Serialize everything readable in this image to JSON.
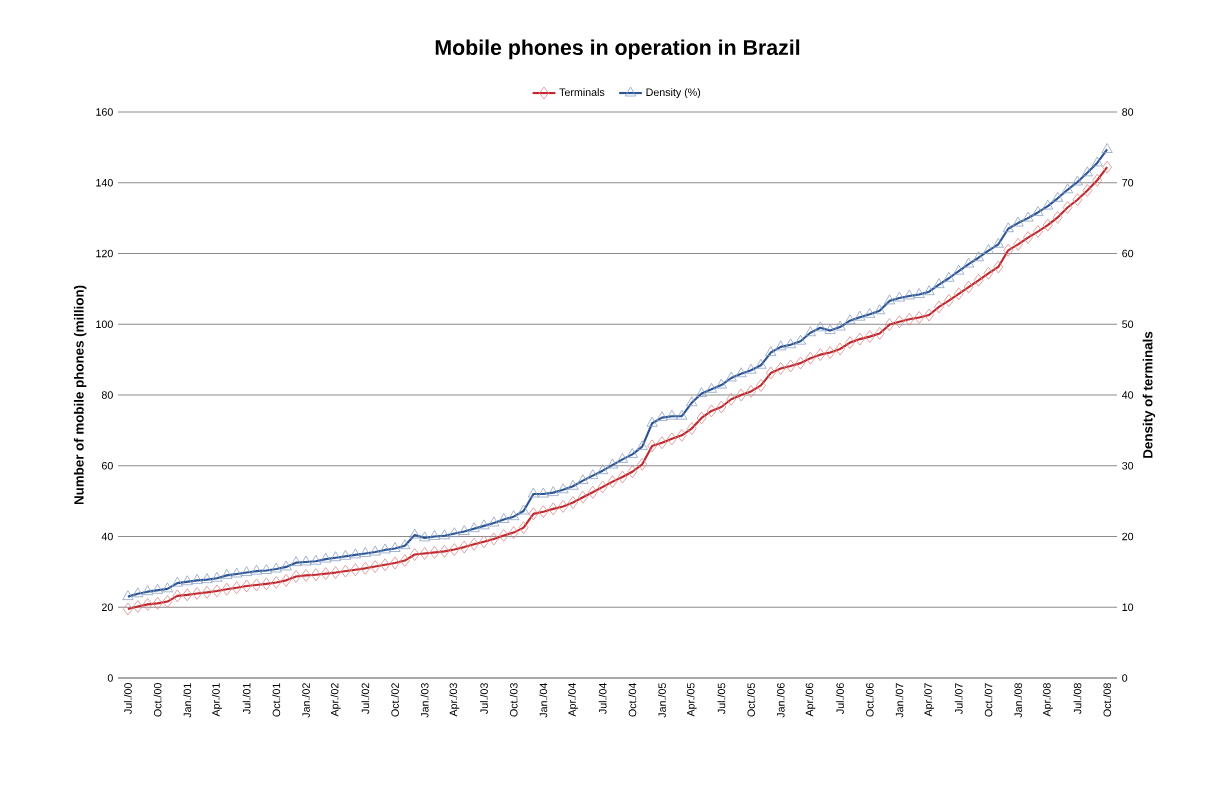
{
  "chart_data": {
    "type": "line",
    "title": "Mobile phones in operation in Brazil",
    "ylabel": "Number of mobile phones (million)",
    "y2label": "Density of terminals",
    "categories": [
      "Jul./00",
      null,
      null,
      "Oct./00",
      null,
      null,
      "Jan./01",
      null,
      null,
      "Apr./01",
      null,
      null,
      "Jul./01",
      null,
      null,
      "Oct./01",
      null,
      null,
      "Jan./02",
      null,
      null,
      "Apr./02",
      null,
      null,
      "Jul./02",
      null,
      null,
      "Oct./02",
      null,
      null,
      "Jan./03",
      null,
      null,
      "Apr./03",
      null,
      null,
      "Jul./03",
      null,
      null,
      "Oct./03",
      null,
      null,
      "Jan./04",
      null,
      null,
      "Apr./04",
      null,
      null,
      "Jul./04",
      null,
      null,
      "Oct./04",
      null,
      null,
      "Jan./05",
      null,
      null,
      "Apr./05",
      null,
      null,
      "Jul./05",
      null,
      null,
      "Oct./05",
      null,
      null,
      "Jan./06",
      null,
      null,
      "Apr./06",
      null,
      null,
      "Jul./06",
      null,
      null,
      "Oct./06",
      null,
      null,
      "Jan./07",
      null,
      null,
      "Apr./07",
      null,
      null,
      "Jul./07",
      null,
      null,
      "Oct./07",
      null,
      null,
      "Jan./08",
      null,
      null,
      "Apr./08",
      null,
      null,
      "Jul./08",
      null,
      null,
      "Oct./08"
    ],
    "series": [
      {
        "name": "Terminals",
        "color": "#c0282d",
        "marker": "diamond",
        "values": [
          19.5,
          20.2,
          20.8,
          21.1,
          21.6,
          23.2,
          23.5,
          23.9,
          24.2,
          24.6,
          25.1,
          25.5,
          26.0,
          26.3,
          26.6,
          27.0,
          27.6,
          28.7,
          29.0,
          29.2,
          29.5,
          29.8,
          30.2,
          30.6,
          31.0,
          31.5,
          32.0,
          32.5,
          33.2,
          34.9,
          35.2,
          35.5,
          35.8,
          36.3,
          37.0,
          37.8,
          38.5,
          39.3,
          40.3,
          41.1,
          42.5,
          46.4,
          47.0,
          47.8,
          48.5,
          49.6,
          51.1,
          52.5,
          54.0,
          55.5,
          56.8,
          58.3,
          60.4,
          65.6,
          66.5,
          67.6,
          68.6,
          70.5,
          73.5,
          75.5,
          76.6,
          78.8,
          80.0,
          81.0,
          82.7,
          86.2,
          87.5,
          88.2,
          89.0,
          90.4,
          91.4,
          92.0,
          93.0,
          94.8,
          95.8,
          96.5,
          97.4,
          99.9,
          100.7,
          101.4,
          101.9,
          102.6,
          104.9,
          106.7,
          108.6,
          110.5,
          112.4,
          114.4,
          116.2,
          120.9,
          122.6,
          124.5,
          126.2,
          128.0,
          130.2,
          133.0,
          135.2,
          137.8,
          140.7,
          144.4
        ]
      },
      {
        "name": "Density (%)",
        "color": "#2c5596",
        "marker": "triangle",
        "axis": "y2",
        "values": [
          11.5,
          11.9,
          12.2,
          12.4,
          12.6,
          13.4,
          13.6,
          13.8,
          13.9,
          14.1,
          14.5,
          14.7,
          14.9,
          15.1,
          15.2,
          15.4,
          15.7,
          16.3,
          16.4,
          16.5,
          16.8,
          17.0,
          17.2,
          17.4,
          17.6,
          17.8,
          18.1,
          18.3,
          18.7,
          20.2,
          19.8,
          20.0,
          20.1,
          20.4,
          20.7,
          21.1,
          21.5,
          21.9,
          22.4,
          22.8,
          23.6,
          26.0,
          26.0,
          26.2,
          26.6,
          27.1,
          27.9,
          28.6,
          29.3,
          30.1,
          30.9,
          31.6,
          32.7,
          36.0,
          36.8,
          37.0,
          37.0,
          38.9,
          40.2,
          40.8,
          41.4,
          42.4,
          43.0,
          43.5,
          44.2,
          46.0,
          46.8,
          47.1,
          47.6,
          48.8,
          49.5,
          49.1,
          49.6,
          50.5,
          51.0,
          51.4,
          51.9,
          53.3,
          53.7,
          54.0,
          54.2,
          54.6,
          55.6,
          56.5,
          57.5,
          58.5,
          59.4,
          60.4,
          61.3,
          63.5,
          64.3,
          65.0,
          65.8,
          66.7,
          67.8,
          69.0,
          70.1,
          71.4,
          72.8,
          74.7
        ]
      }
    ],
    "ylim": [
      0,
      160
    ],
    "yticks": [
      0,
      20,
      40,
      60,
      80,
      100,
      120,
      140,
      160
    ],
    "y2lim": [
      0,
      80
    ],
    "y2ticks": [
      0,
      10,
      20,
      30,
      40,
      50,
      60,
      70,
      80
    ],
    "grid": "y",
    "legend": "top"
  }
}
